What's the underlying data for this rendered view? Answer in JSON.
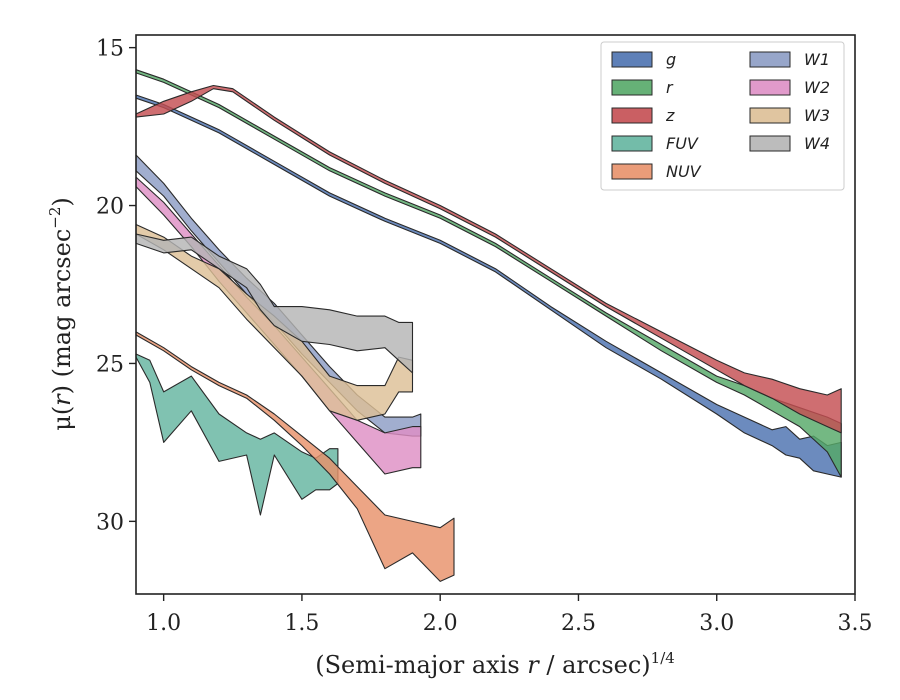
{
  "chart_data": {
    "type": "area",
    "xlabel": "(Semi-major axis r / arcsec)",
    "xlabel_parts": [
      "(Semi-major axis ",
      "r",
      " / arcsec)",
      "1/4"
    ],
    "ylabel": "μ(r) (mag arcsec⁻²)",
    "ylabel_parts": [
      "μ(",
      "r",
      ") (mag arcsec",
      "−2",
      ")"
    ],
    "xlim": [
      0.9,
      3.5
    ],
    "ylim": [
      32.3,
      14.6
    ],
    "y_inverted": true,
    "x_ticks": [
      "1.0",
      "1.5",
      "2.0",
      "2.5",
      "3.0",
      "3.5"
    ],
    "y_ticks": [
      "15",
      "20",
      "25",
      "30"
    ],
    "grid": false,
    "legend_position": "top-right",
    "legend_columns": 2,
    "series": [
      {
        "name": "g",
        "color": "#4c72b0",
        "x": [
          0.9,
          1.0,
          1.2,
          1.4,
          1.6,
          1.8,
          2.0,
          2.2,
          2.4,
          2.6,
          2.8,
          3.0,
          3.1,
          3.2,
          3.25,
          3.3,
          3.35,
          3.4,
          3.45
        ],
        "y_upper": [
          16.5,
          16.8,
          17.6,
          18.6,
          19.6,
          20.4,
          21.1,
          22.0,
          23.2,
          24.3,
          25.3,
          26.3,
          26.7,
          27.1,
          27.0,
          27.4,
          27.3,
          27.6,
          27.5
        ],
        "y_lower": [
          16.6,
          16.9,
          17.7,
          18.7,
          19.7,
          20.5,
          21.2,
          22.1,
          23.3,
          24.5,
          25.5,
          26.6,
          27.2,
          27.6,
          27.9,
          28.0,
          28.4,
          28.5,
          28.6
        ]
      },
      {
        "name": "r",
        "color": "#55a868",
        "x": [
          0.9,
          1.0,
          1.2,
          1.4,
          1.6,
          1.8,
          2.0,
          2.2,
          2.4,
          2.6,
          2.8,
          3.0,
          3.1,
          3.2,
          3.3,
          3.4,
          3.45
        ],
        "y_upper": [
          15.7,
          16.0,
          16.8,
          17.8,
          18.8,
          19.6,
          20.3,
          21.2,
          22.3,
          23.4,
          24.4,
          25.4,
          25.7,
          26.1,
          26.4,
          26.7,
          26.9
        ],
        "y_lower": [
          15.8,
          16.1,
          16.9,
          17.9,
          18.9,
          19.7,
          20.4,
          21.3,
          22.4,
          23.5,
          24.6,
          25.6,
          26.0,
          26.5,
          27.0,
          27.8,
          28.6
        ]
      },
      {
        "name": "z",
        "color": "#c44e52",
        "x": [
          0.9,
          1.0,
          1.1,
          1.18,
          1.25,
          1.4,
          1.6,
          1.8,
          2.0,
          2.2,
          2.4,
          2.6,
          2.8,
          3.0,
          3.1,
          3.2,
          3.3,
          3.4,
          3.45
        ],
        "y_upper": [
          17.1,
          16.7,
          16.4,
          16.2,
          16.3,
          17.2,
          18.3,
          19.2,
          20.0,
          20.9,
          22.0,
          23.1,
          24.0,
          24.9,
          25.3,
          25.5,
          25.8,
          26.0,
          25.8
        ],
        "y_lower": [
          17.2,
          17.1,
          16.7,
          16.3,
          16.4,
          17.3,
          18.4,
          19.3,
          20.1,
          21.0,
          22.1,
          23.2,
          24.2,
          25.2,
          25.7,
          26.1,
          26.6,
          27.0,
          27.2
        ]
      },
      {
        "name": "FUV",
        "color": "#64b5a0",
        "x": [
          0.9,
          0.95,
          1.0,
          1.1,
          1.2,
          1.3,
          1.35,
          1.4,
          1.5,
          1.55,
          1.6,
          1.63
        ],
        "y_upper": [
          24.7,
          24.9,
          25.9,
          25.4,
          26.6,
          27.2,
          27.4,
          27.2,
          27.8,
          28.0,
          27.7,
          27.7
        ],
        "y_lower": [
          24.8,
          25.6,
          27.5,
          26.5,
          28.1,
          27.9,
          29.8,
          27.9,
          29.3,
          29.0,
          29.0,
          28.8
        ]
      },
      {
        "name": "NUV",
        "color": "#e8916a",
        "x": [
          0.9,
          1.0,
          1.1,
          1.2,
          1.3,
          1.4,
          1.5,
          1.6,
          1.7,
          1.8,
          1.9,
          2.0,
          2.05
        ],
        "y_upper": [
          24.0,
          24.5,
          25.1,
          25.6,
          26.0,
          26.6,
          27.3,
          28.0,
          28.9,
          29.8,
          30.0,
          30.2,
          29.9
        ],
        "y_lower": [
          24.1,
          24.6,
          25.2,
          25.7,
          26.1,
          26.8,
          27.6,
          28.5,
          29.6,
          31.5,
          31.0,
          31.9,
          31.7
        ]
      },
      {
        "name": "W1",
        "color": "#8c9cc4",
        "x": [
          0.9,
          1.0,
          1.1,
          1.2,
          1.3,
          1.4,
          1.5,
          1.6,
          1.7,
          1.8,
          1.9,
          1.93
        ],
        "y_upper": [
          18.4,
          19.3,
          20.4,
          21.4,
          22.3,
          23.1,
          24.1,
          25.1,
          26.0,
          26.7,
          26.7,
          26.6
        ],
        "y_lower": [
          18.9,
          19.7,
          20.8,
          21.8,
          22.8,
          23.7,
          24.7,
          25.6,
          26.5,
          27.2,
          27.3,
          27.3
        ]
      },
      {
        "name": "W2",
        "color": "#de8fc5",
        "x": [
          0.9,
          1.0,
          1.1,
          1.2,
          1.3,
          1.4,
          1.5,
          1.6,
          1.7,
          1.8,
          1.9,
          1.93
        ],
        "y_upper": [
          19.1,
          19.9,
          20.9,
          21.9,
          22.9,
          23.8,
          24.8,
          25.8,
          26.8,
          27.2,
          27.0,
          27.0
        ],
        "y_lower": [
          19.4,
          20.3,
          21.3,
          22.4,
          23.4,
          24.4,
          25.4,
          26.5,
          27.5,
          28.5,
          28.3,
          28.3
        ]
      },
      {
        "name": "W3",
        "color": "#ddbf96",
        "x": [
          0.9,
          1.0,
          1.1,
          1.2,
          1.3,
          1.4,
          1.5,
          1.6,
          1.7,
          1.8,
          1.85,
          1.9
        ],
        "y_upper": [
          20.6,
          21.0,
          21.6,
          22.0,
          22.8,
          23.5,
          24.3,
          25.4,
          25.7,
          25.7,
          24.8,
          24.9
        ],
        "y_lower": [
          20.9,
          21.4,
          22.0,
          22.6,
          23.6,
          24.5,
          25.4,
          26.5,
          26.8,
          26.6,
          25.9,
          25.9
        ]
      },
      {
        "name": "W4",
        "color": "#b5b5b5",
        "x": [
          0.9,
          1.0,
          1.1,
          1.2,
          1.3,
          1.35,
          1.4,
          1.5,
          1.6,
          1.7,
          1.8,
          1.85,
          1.9
        ],
        "y_upper": [
          20.9,
          21.1,
          21.0,
          21.6,
          22.0,
          22.5,
          23.2,
          23.2,
          23.3,
          23.5,
          23.5,
          23.7,
          23.7
        ],
        "y_lower": [
          21.2,
          21.5,
          21.4,
          22.0,
          22.6,
          23.3,
          23.8,
          24.3,
          24.4,
          24.6,
          24.5,
          24.9,
          25.3
        ]
      }
    ]
  }
}
